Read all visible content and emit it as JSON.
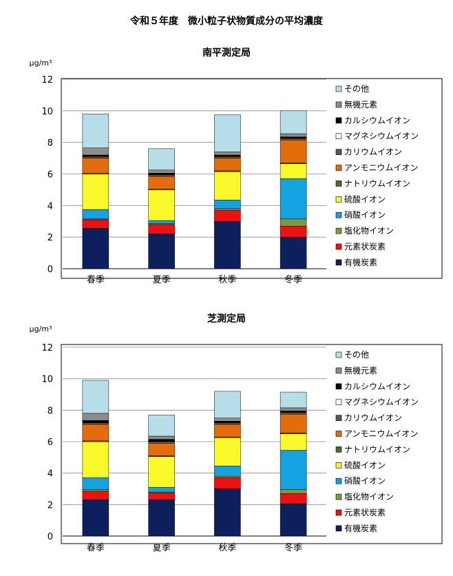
{
  "page": {
    "title": "令和５年度　微小粒子状物質成分の平均濃度"
  },
  "chart_data": [
    {
      "type": "bar",
      "stacked": true,
      "title": "南平測定局",
      "ylabel": "μg/m³",
      "xlabel": "",
      "ylim": [
        0,
        12
      ],
      "yticks": [
        "0",
        "2",
        "4",
        "6",
        "8",
        "10",
        "12"
      ],
      "categories": [
        "春季",
        "夏季",
        "秋季",
        "冬季"
      ],
      "legend_position": "right",
      "series": [
        {
          "name": "有機炭素",
          "color": "#0d1f5c",
          "values": [
            2.55,
            2.2,
            3.0,
            2.0
          ]
        },
        {
          "name": "元素状炭素",
          "color": "#ee1111",
          "values": [
            0.55,
            0.6,
            0.7,
            0.7
          ]
        },
        {
          "name": "塩化物イオン",
          "color": "#7f9a3a",
          "values": [
            0.05,
            0.05,
            0.1,
            0.45
          ]
        },
        {
          "name": "硝酸イオン",
          "color": "#14a3e0",
          "values": [
            0.6,
            0.2,
            0.55,
            2.55
          ]
        },
        {
          "name": "硫酸イオン",
          "color": "#f8f82a",
          "values": [
            2.25,
            1.95,
            1.8,
            0.95
          ]
        },
        {
          "name": "ナトリウムイオン",
          "color": "#4f6b2f",
          "values": [
            0.05,
            0.05,
            0.05,
            0.05
          ]
        },
        {
          "name": "アンモニウムイオン",
          "color": "#e46c0a",
          "values": [
            0.95,
            0.8,
            0.8,
            1.45
          ]
        },
        {
          "name": "カリウムイオン",
          "color": "#595959",
          "values": [
            0.1,
            0.1,
            0.1,
            0.1
          ]
        },
        {
          "name": "マグネシウムイオン",
          "color": "#ffffff",
          "values": [
            0.02,
            0.02,
            0.02,
            0.02
          ]
        },
        {
          "name": "カルシウムイオン",
          "color": "#000000",
          "values": [
            0.08,
            0.08,
            0.08,
            0.08
          ]
        },
        {
          "name": "無機元素",
          "color": "#8c8c8c",
          "values": [
            0.45,
            0.2,
            0.2,
            0.2
          ]
        },
        {
          "name": "その他",
          "color": "#b7dde8",
          "values": [
            2.15,
            1.35,
            2.35,
            1.45
          ]
        }
      ]
    },
    {
      "type": "bar",
      "stacked": true,
      "title": "芝測定局",
      "ylabel": "μg/m³",
      "xlabel": "",
      "ylim": [
        0,
        12
      ],
      "yticks": [
        "0",
        "2",
        "4",
        "6",
        "8",
        "10",
        "12"
      ],
      "categories": [
        "春季",
        "夏季",
        "秋季",
        "冬季"
      ],
      "legend_position": "right",
      "series": [
        {
          "name": "有機炭素",
          "color": "#0d1f5c",
          "values": [
            2.3,
            2.3,
            3.0,
            2.05
          ]
        },
        {
          "name": "元素状炭素",
          "color": "#ee1111",
          "values": [
            0.55,
            0.45,
            0.7,
            0.65
          ]
        },
        {
          "name": "塩化物イオン",
          "color": "#7f9a3a",
          "values": [
            0.1,
            0.05,
            0.1,
            0.25
          ]
        },
        {
          "name": "硝酸イオン",
          "color": "#14a3e0",
          "values": [
            0.75,
            0.3,
            0.65,
            2.5
          ]
        },
        {
          "name": "硫酸イオン",
          "color": "#f8f82a",
          "values": [
            2.3,
            1.95,
            1.8,
            1.05
          ]
        },
        {
          "name": "ナトリウムイオン",
          "color": "#4f6b2f",
          "values": [
            0.05,
            0.05,
            0.05,
            0.05
          ]
        },
        {
          "name": "アンモニウムイオン",
          "color": "#e46c0a",
          "values": [
            1.05,
            0.8,
            0.8,
            1.2
          ]
        },
        {
          "name": "カリウムイオン",
          "color": "#595959",
          "values": [
            0.1,
            0.1,
            0.1,
            0.1
          ]
        },
        {
          "name": "マグネシウムイオン",
          "color": "#ffffff",
          "values": [
            0.02,
            0.02,
            0.02,
            0.02
          ]
        },
        {
          "name": "カルシウムイオン",
          "color": "#000000",
          "values": [
            0.13,
            0.13,
            0.08,
            0.08
          ]
        },
        {
          "name": "無機元素",
          "color": "#8c8c8c",
          "values": [
            0.45,
            0.2,
            0.2,
            0.2
          ]
        },
        {
          "name": "その他",
          "color": "#b7dde8",
          "values": [
            2.1,
            1.35,
            1.7,
            1.0
          ]
        }
      ]
    }
  ]
}
